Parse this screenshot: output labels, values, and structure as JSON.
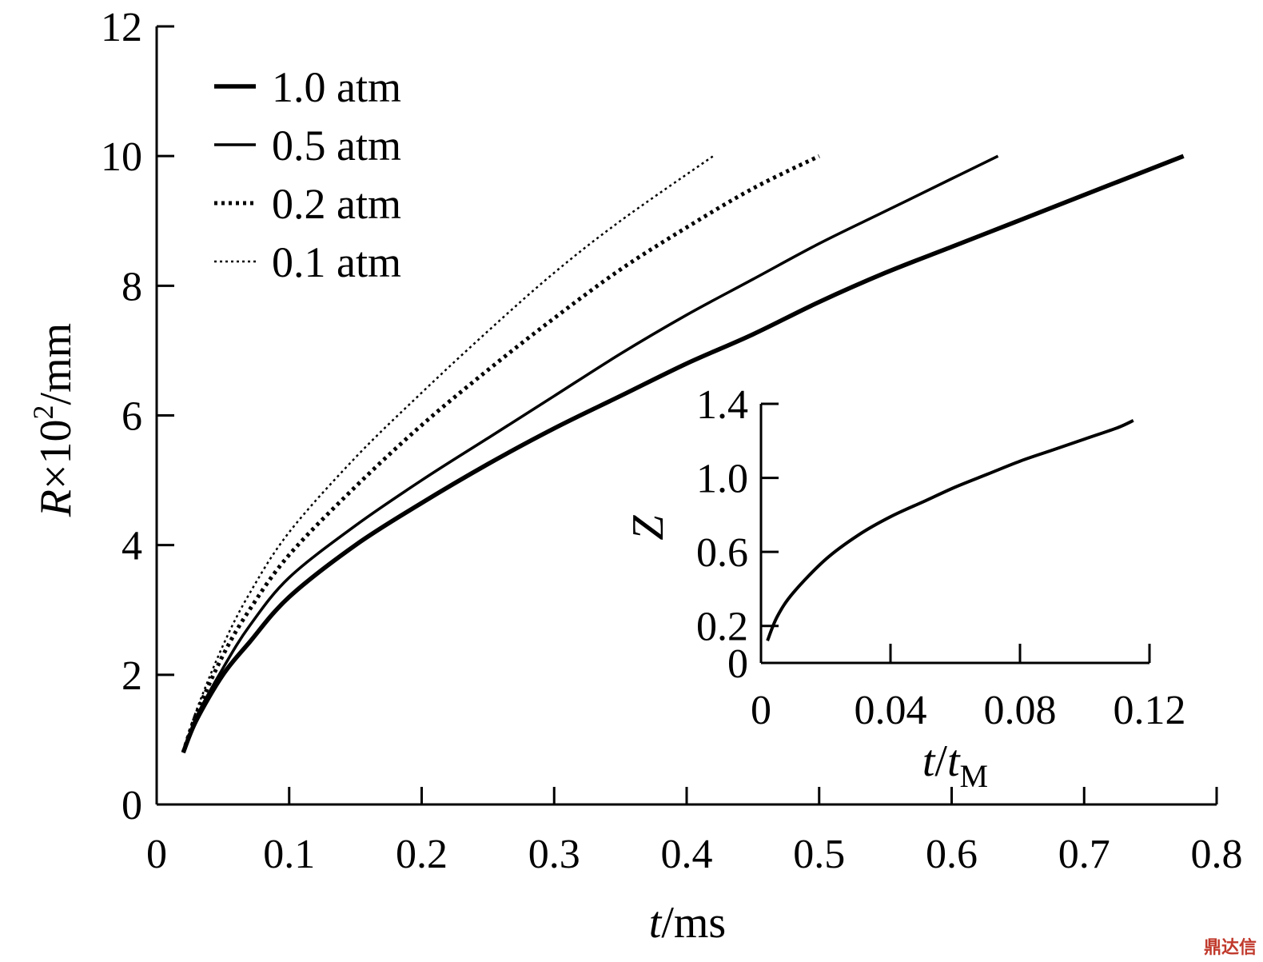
{
  "chart_data": [
    {
      "type": "line",
      "xlabel": {
        "italic": "t",
        "rest": "/ms"
      },
      "ylabel": {
        "italic": "R",
        "rest": "×10",
        "sup": "2",
        "tail": "/mm"
      },
      "xlim": [
        0,
        0.8
      ],
      "ylim": [
        0,
        12
      ],
      "xticks": [
        "0",
        "0.1",
        "0.2",
        "0.3",
        "0.4",
        "0.5",
        "0.6",
        "0.7",
        "0.8"
      ],
      "yticks": [
        "0",
        "2",
        "4",
        "6",
        "8",
        "10",
        "12"
      ],
      "legend_position": "top-left",
      "series": [
        {
          "name": "1.0 atm",
          "style": "solid-thick",
          "x": [
            0.02,
            0.03,
            0.05,
            0.07,
            0.1,
            0.15,
            0.2,
            0.25,
            0.3,
            0.35,
            0.4,
            0.45,
            0.5,
            0.55,
            0.6,
            0.65,
            0.7,
            0.75,
            0.775
          ],
          "y": [
            0.8,
            1.3,
            2.0,
            2.5,
            3.2,
            4.0,
            4.65,
            5.25,
            5.8,
            6.3,
            6.8,
            7.25,
            7.75,
            8.2,
            8.6,
            9.0,
            9.4,
            9.8,
            10.0
          ]
        },
        {
          "name": "0.5 atm",
          "style": "solid",
          "x": [
            0.02,
            0.03,
            0.05,
            0.07,
            0.1,
            0.15,
            0.2,
            0.25,
            0.3,
            0.35,
            0.4,
            0.45,
            0.5,
            0.55,
            0.6,
            0.635
          ],
          "y": [
            0.8,
            1.35,
            2.1,
            2.75,
            3.5,
            4.3,
            5.0,
            5.65,
            6.3,
            6.95,
            7.55,
            8.1,
            8.65,
            9.15,
            9.65,
            10.0
          ]
        },
        {
          "name": "0.2 atm",
          "style": "dotted-thick",
          "x": [
            0.02,
            0.03,
            0.05,
            0.07,
            0.1,
            0.15,
            0.2,
            0.25,
            0.3,
            0.35,
            0.4,
            0.45,
            0.5
          ],
          "y": [
            0.8,
            1.4,
            2.3,
            3.0,
            3.85,
            4.9,
            5.85,
            6.7,
            7.5,
            8.25,
            8.9,
            9.5,
            10.0
          ]
        },
        {
          "name": "0.1 atm",
          "style": "dotted-thin",
          "x": [
            0.02,
            0.03,
            0.05,
            0.07,
            0.1,
            0.15,
            0.2,
            0.25,
            0.3,
            0.35,
            0.42
          ],
          "y": [
            0.8,
            1.45,
            2.45,
            3.25,
            4.2,
            5.35,
            6.35,
            7.3,
            8.2,
            9.0,
            10.0
          ]
        }
      ]
    },
    {
      "type": "line",
      "role": "inset",
      "xlabel": {
        "italic": "t",
        "mid": "/",
        "italic2": "t",
        "sub": "M"
      },
      "ylabel": "Z",
      "xlim": [
        0,
        0.12
      ],
      "ylim": [
        0,
        1.4
      ],
      "xticks": [
        "0",
        "0.04",
        "0.08",
        "0.12"
      ],
      "yticks": [
        "0",
        "0.2",
        "0.6",
        "1.0",
        "1.4"
      ],
      "series": [
        {
          "x": [
            0.002,
            0.005,
            0.01,
            0.02,
            0.03,
            0.04,
            0.05,
            0.06,
            0.07,
            0.08,
            0.09,
            0.1,
            0.11,
            0.115
          ],
          "y": [
            0.12,
            0.25,
            0.38,
            0.56,
            0.69,
            0.79,
            0.87,
            0.95,
            1.02,
            1.09,
            1.15,
            1.21,
            1.27,
            1.31
          ]
        }
      ]
    }
  ],
  "watermark": "鼎达信"
}
